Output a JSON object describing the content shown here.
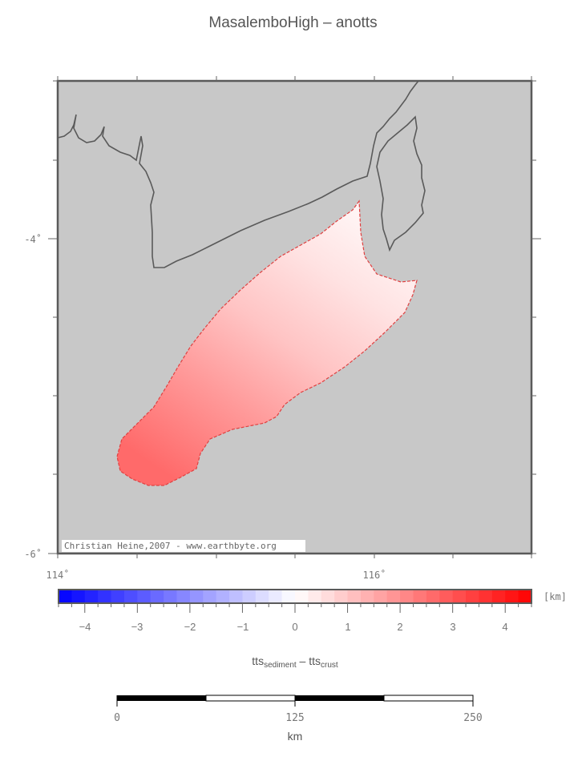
{
  "title": "MasalemboHigh – anotts",
  "map": {
    "y_labels": [
      "-4˚",
      "-6˚"
    ],
    "x_labels": [
      "114˚",
      "116˚"
    ],
    "credit": "Christian Heine,2007 - www.earthbyte.org",
    "background_color": "#c8c8c8",
    "coastline_color": "#5a5a5a",
    "anomaly_outline_color": "#e04040"
  },
  "colorbar": {
    "unit": "[km]",
    "tick_labels": [
      "−4",
      "−3",
      "−2",
      "−1",
      "0",
      "1",
      "2",
      "3",
      "4"
    ],
    "range": [
      -4.5,
      4.5
    ],
    "low_color": "#0000ff",
    "mid_color": "#ffffff",
    "high_color": "#ff0000",
    "label_main": "tts",
    "label_sub1": "sediment",
    "label_mid": " – tts",
    "label_sub2": "crust"
  },
  "scalebar": {
    "tick_labels": [
      "0",
      "125",
      "250"
    ],
    "unit": "km"
  }
}
